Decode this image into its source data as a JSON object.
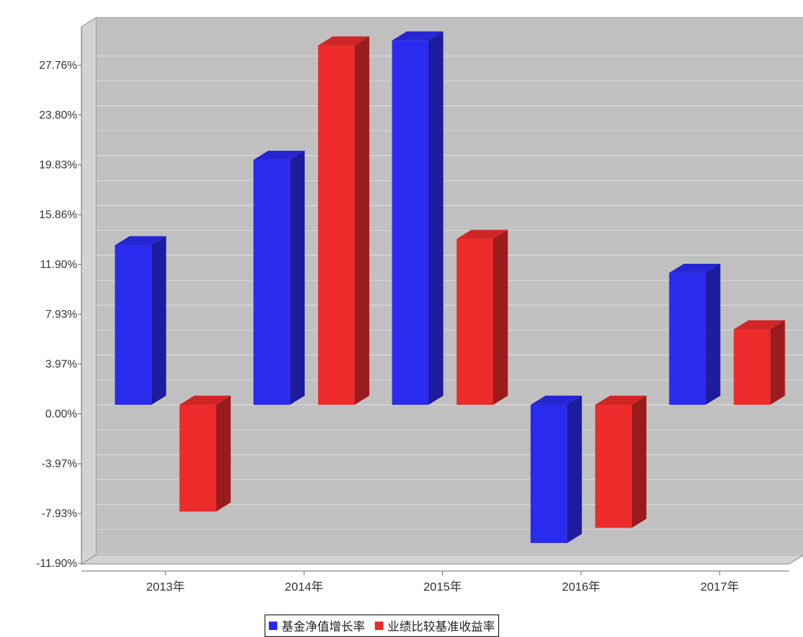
{
  "chart_data": {
    "type": "bar",
    "categories": [
      "2013年",
      "2014年",
      "2015年",
      "2016年",
      "2017年"
    ],
    "series": [
      {
        "name": "基金净值增长率",
        "color": "#2b2bf0",
        "values": [
          12.7,
          19.5,
          29.0,
          -11.0,
          10.5
        ]
      },
      {
        "name": "业绩比较基准收益率",
        "color": "#ee2b2b",
        "values": [
          -8.5,
          28.6,
          13.2,
          -9.8,
          6.0
        ]
      }
    ],
    "yticks": [
      "27.76%",
      "23.80%",
      "19.83%",
      "15.86%",
      "11.90%",
      "7.93%",
      "3.97%",
      "0.00%",
      "-3.97%",
      "-7.93%",
      "-11.90%"
    ],
    "ytick_values": [
      27.76,
      23.8,
      19.83,
      15.86,
      11.9,
      7.93,
      3.97,
      0.0,
      -3.97,
      -7.93,
      -11.9
    ],
    "ylim": [
      -11.9,
      30.0
    ],
    "grid": true,
    "legend_position": "bottom-center",
    "plot_background": "#c0c0c0"
  }
}
